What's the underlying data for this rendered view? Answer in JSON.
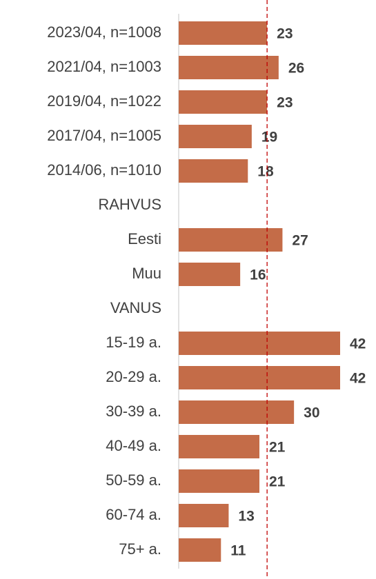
{
  "chart_data": {
    "type": "bar",
    "orientation": "horizontal",
    "categories": [
      "2023/04, n=1008",
      "2021/04, n=1003",
      "2019/04, n=1022",
      "2017/04, n=1005",
      "2014/06, n=1010",
      "RAHVUS",
      "Eesti",
      "Muu",
      "VANUS",
      "15-19 a.",
      "20-29 a.",
      "30-39 a.",
      "40-49 a.",
      "50-59 a.",
      "60-74 a.",
      "75+ a."
    ],
    "values": [
      23,
      26,
      23,
      19,
      18,
      null,
      27,
      16,
      null,
      42,
      42,
      30,
      21,
      21,
      13,
      11
    ],
    "color": "#c46c48",
    "reference_line": 23,
    "reference_color": "#c00000",
    "xlim": [
      0,
      42
    ]
  }
}
